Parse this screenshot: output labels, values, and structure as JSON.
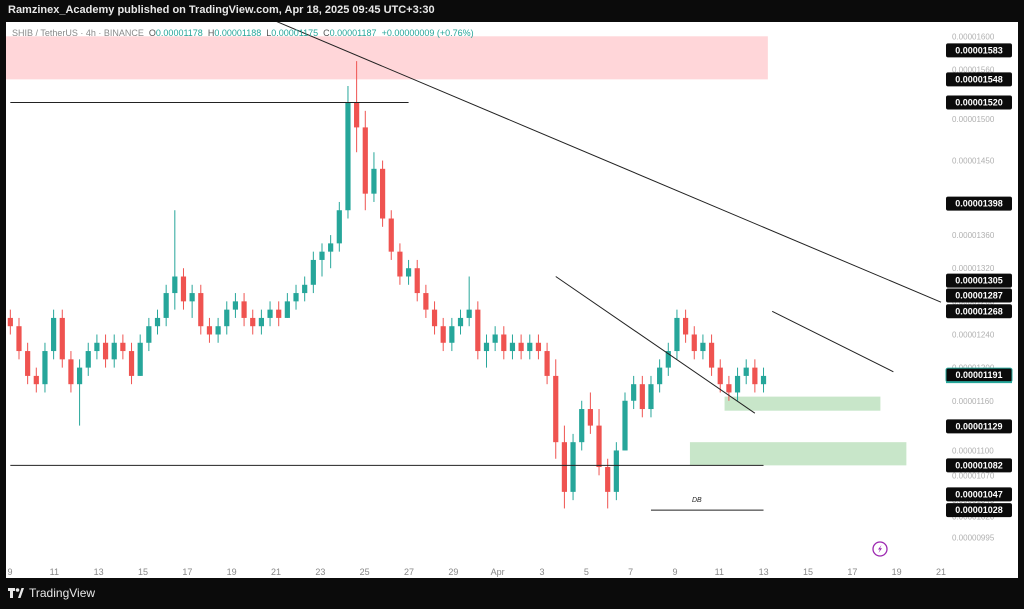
{
  "header": {
    "publisher_text": "Ramzinex_Academy published on TradingView.com, Apr 18, 2025 09:45 UTC+3:30"
  },
  "legend": {
    "symbol": "SHIB / TetherUS · 4h · BINANCE",
    "open_label": "O",
    "open": "0.00001178",
    "high_label": "H",
    "high": "0.00001188",
    "low_label": "L",
    "low": "0.00001175",
    "close_label": "C",
    "close": "0.00001187",
    "change": "+0.00000009 (+0.76%)"
  },
  "footer": {
    "brand": "TradingView"
  },
  "annotations": {
    "double_bottom": "DB"
  },
  "colors": {
    "up": "#26a69a",
    "down": "#ef5350",
    "resistance_zone": "#ffd6d9",
    "support_zone": "#c8e6c9",
    "line": "#222222",
    "price_tag_bg": "#0b0b0b",
    "current_price_tag": "#26a69a"
  },
  "chart_data": {
    "type": "candlestick",
    "title": "",
    "y_scale": "linear",
    "ylim": [
      9.75e-06,
      1.61e-05
    ],
    "y_axis_ticks": [
      "0.00001600",
      "0.00001560",
      "0.00001500",
      "0.00001450",
      "0.00001400",
      "0.00001360",
      "0.00001320",
      "0.00001280",
      "0.00001240",
      "0.00001200",
      "0.00001160",
      "0.00001130",
      "0.00001100",
      "0.00001070",
      "0.00001040",
      "0.00001020",
      "0.00000995"
    ],
    "x_axis_ticks": [
      "9",
      "11",
      "13",
      "15",
      "17",
      "19",
      "21",
      "23",
      "25",
      "27",
      "29",
      "Apr",
      "3",
      "5",
      "7",
      "9",
      "11",
      "13",
      "15",
      "17",
      "19",
      "21"
    ],
    "price_tags": [
      {
        "value": "0.00001583",
        "type": "level"
      },
      {
        "value": "0.00001548",
        "type": "level"
      },
      {
        "value": "0.00001520",
        "type": "level"
      },
      {
        "value": "0.00001398",
        "type": "level"
      },
      {
        "value": "0.00001305",
        "type": "level"
      },
      {
        "value": "0.00001287",
        "type": "level"
      },
      {
        "value": "0.00001268",
        "type": "level"
      },
      {
        "value": "0.00001191",
        "type": "current"
      },
      {
        "value": "0.00001129",
        "type": "level"
      },
      {
        "value": "0.00001082",
        "type": "level"
      },
      {
        "value": "0.00001047",
        "type": "level"
      },
      {
        "value": "0.00001028",
        "type": "level"
      }
    ],
    "zones": [
      {
        "kind": "resistance",
        "x_start": 0,
        "x_end": 88,
        "y_low": 1.548e-05,
        "y_high": 1.6e-05
      },
      {
        "kind": "support",
        "x_start": 83,
        "x_end": 101,
        "y_low": 1.148e-05,
        "y_high": 1.165e-05
      },
      {
        "kind": "support",
        "x_start": 79,
        "x_end": 104,
        "y_low": 1.082e-05,
        "y_high": 1.11e-05
      }
    ],
    "lines": [
      {
        "name": "horizontal-resistance",
        "x1": 0,
        "y1": 1.52e-05,
        "x2": 46,
        "y2": 1.52e-05
      },
      {
        "name": "horizontal-support",
        "x1": 0,
        "y1": 1.082e-05,
        "x2": 87,
        "y2": 1.082e-05
      },
      {
        "name": "major-downtrend",
        "x1": 28,
        "y1": 1.63e-05,
        "x2": 110,
        "y2": 1.279e-05
      },
      {
        "name": "mid-downtrend",
        "x1": 63,
        "y1": 1.31e-05,
        "x2": 86,
        "y2": 1.145e-05
      },
      {
        "name": "recent-downtrend",
        "x1": 88,
        "y1": 1.268e-05,
        "x2": 102,
        "y2": 1.195e-05
      },
      {
        "name": "double-bottom-line",
        "x1": 74,
        "y1": 1.028e-05,
        "x2": 87,
        "y2": 1.028e-05
      }
    ],
    "candles": [
      [
        1.26e-05,
        1.27e-05,
        1.24e-05,
        1.25e-05
      ],
      [
        1.25e-05,
        1.26e-05,
        1.21e-05,
        1.22e-05
      ],
      [
        1.22e-05,
        1.23e-05,
        1.18e-05,
        1.19e-05
      ],
      [
        1.19e-05,
        1.2e-05,
        1.17e-05,
        1.18e-05
      ],
      [
        1.18e-05,
        1.23e-05,
        1.17e-05,
        1.22e-05
      ],
      [
        1.22e-05,
        1.27e-05,
        1.21e-05,
        1.26e-05
      ],
      [
        1.26e-05,
        1.27e-05,
        1.2e-05,
        1.21e-05
      ],
      [
        1.21e-05,
        1.22e-05,
        1.17e-05,
        1.18e-05
      ],
      [
        1.18e-05,
        1.21e-05,
        1.13e-05,
        1.2e-05
      ],
      [
        1.2e-05,
        1.23e-05,
        1.19e-05,
        1.22e-05
      ],
      [
        1.22e-05,
        1.24e-05,
        1.21e-05,
        1.23e-05
      ],
      [
        1.23e-05,
        1.24e-05,
        1.2e-05,
        1.21e-05
      ],
      [
        1.21e-05,
        1.24e-05,
        1.2e-05,
        1.23e-05
      ],
      [
        1.23e-05,
        1.24e-05,
        1.21e-05,
        1.22e-05
      ],
      [
        1.22e-05,
        1.23e-05,
        1.18e-05,
        1.19e-05
      ],
      [
        1.19e-05,
        1.24e-05,
        1.19e-05,
        1.23e-05
      ],
      [
        1.23e-05,
        1.26e-05,
        1.22e-05,
        1.25e-05
      ],
      [
        1.25e-05,
        1.27e-05,
        1.24e-05,
        1.26e-05
      ],
      [
        1.26e-05,
        1.3e-05,
        1.25e-05,
        1.29e-05
      ],
      [
        1.29e-05,
        1.39e-05,
        1.27e-05,
        1.31e-05
      ],
      [
        1.31e-05,
        1.32e-05,
        1.27e-05,
        1.28e-05
      ],
      [
        1.28e-05,
        1.3e-05,
        1.26e-05,
        1.29e-05
      ],
      [
        1.29e-05,
        1.3e-05,
        1.24e-05,
        1.25e-05
      ],
      [
        1.25e-05,
        1.26e-05,
        1.23e-05,
        1.24e-05
      ],
      [
        1.24e-05,
        1.26e-05,
        1.23e-05,
        1.25e-05
      ],
      [
        1.25e-05,
        1.28e-05,
        1.24e-05,
        1.27e-05
      ],
      [
        1.27e-05,
        1.29e-05,
        1.26e-05,
        1.28e-05
      ],
      [
        1.28e-05,
        1.29e-05,
        1.25e-05,
        1.26e-05
      ],
      [
        1.26e-05,
        1.27e-05,
        1.24e-05,
        1.25e-05
      ],
      [
        1.25e-05,
        1.27e-05,
        1.24e-05,
        1.26e-05
      ],
      [
        1.26e-05,
        1.28e-05,
        1.25e-05,
        1.27e-05
      ],
      [
        1.27e-05,
        1.28e-05,
        1.25e-05,
        1.26e-05
      ],
      [
        1.26e-05,
        1.29e-05,
        1.26e-05,
        1.28e-05
      ],
      [
        1.28e-05,
        1.3e-05,
        1.27e-05,
        1.29e-05
      ],
      [
        1.29e-05,
        1.31e-05,
        1.28e-05,
        1.3e-05
      ],
      [
        1.3e-05,
        1.34e-05,
        1.29e-05,
        1.33e-05
      ],
      [
        1.33e-05,
        1.35e-05,
        1.31e-05,
        1.34e-05
      ],
      [
        1.34e-05,
        1.36e-05,
        1.32e-05,
        1.35e-05
      ],
      [
        1.35e-05,
        1.4e-05,
        1.34e-05,
        1.39e-05
      ],
      [
        1.39e-05,
        1.54e-05,
        1.38e-05,
        1.52e-05
      ],
      [
        1.52e-05,
        1.57e-05,
        1.46e-05,
        1.49e-05
      ],
      [
        1.49e-05,
        1.51e-05,
        1.39e-05,
        1.41e-05
      ],
      [
        1.41e-05,
        1.46e-05,
        1.4e-05,
        1.44e-05
      ],
      [
        1.44e-05,
        1.45e-05,
        1.37e-05,
        1.38e-05
      ],
      [
        1.38e-05,
        1.39e-05,
        1.33e-05,
        1.34e-05
      ],
      [
        1.34e-05,
        1.35e-05,
        1.3e-05,
        1.31e-05
      ],
      [
        1.31e-05,
        1.33e-05,
        1.3e-05,
        1.32e-05
      ],
      [
        1.32e-05,
        1.33e-05,
        1.28e-05,
        1.29e-05
      ],
      [
        1.29e-05,
        1.3e-05,
        1.26e-05,
        1.27e-05
      ],
      [
        1.27e-05,
        1.28e-05,
        1.24e-05,
        1.25e-05
      ],
      [
        1.25e-05,
        1.26e-05,
        1.22e-05,
        1.23e-05
      ],
      [
        1.23e-05,
        1.26e-05,
        1.22e-05,
        1.25e-05
      ],
      [
        1.25e-05,
        1.27e-05,
        1.24e-05,
        1.26e-05
      ],
      [
        1.26e-05,
        1.31e-05,
        1.25e-05,
        1.27e-05
      ],
      [
        1.27e-05,
        1.28e-05,
        1.21e-05,
        1.22e-05
      ],
      [
        1.22e-05,
        1.24e-05,
        1.2e-05,
        1.23e-05
      ],
      [
        1.23e-05,
        1.25e-05,
        1.22e-05,
        1.24e-05
      ],
      [
        1.24e-05,
        1.25e-05,
        1.21e-05,
        1.22e-05
      ],
      [
        1.22e-05,
        1.24e-05,
        1.21e-05,
        1.23e-05
      ],
      [
        1.23e-05,
        1.24e-05,
        1.21e-05,
        1.22e-05
      ],
      [
        1.22e-05,
        1.24e-05,
        1.21e-05,
        1.23e-05
      ],
      [
        1.23e-05,
        1.24e-05,
        1.21e-05,
        1.22e-05
      ],
      [
        1.22e-05,
        1.23e-05,
        1.18e-05,
        1.19e-05
      ],
      [
        1.19e-05,
        1.21e-05,
        1.09e-05,
        1.11e-05
      ],
      [
        1.11e-05,
        1.13e-05,
        1.03e-05,
        1.05e-05
      ],
      [
        1.05e-05,
        1.12e-05,
        1.04e-05,
        1.11e-05
      ],
      [
        1.11e-05,
        1.16e-05,
        1.1e-05,
        1.15e-05
      ],
      [
        1.15e-05,
        1.17e-05,
        1.12e-05,
        1.13e-05
      ],
      [
        1.13e-05,
        1.15e-05,
        1.07e-05,
        1.08e-05
      ],
      [
        1.08e-05,
        1.09e-05,
        1.03e-05,
        1.05e-05
      ],
      [
        1.05e-05,
        1.11e-05,
        1.04e-05,
        1.1e-05
      ],
      [
        1.1e-05,
        1.17e-05,
        1.1e-05,
        1.16e-05
      ],
      [
        1.16e-05,
        1.19e-05,
        1.15e-05,
        1.18e-05
      ],
      [
        1.18e-05,
        1.19e-05,
        1.14e-05,
        1.15e-05
      ],
      [
        1.15e-05,
        1.19e-05,
        1.14e-05,
        1.18e-05
      ],
      [
        1.18e-05,
        1.21e-05,
        1.17e-05,
        1.2e-05
      ],
      [
        1.2e-05,
        1.23e-05,
        1.19e-05,
        1.22e-05
      ],
      [
        1.22e-05,
        1.27e-05,
        1.21e-05,
        1.26e-05
      ],
      [
        1.26e-05,
        1.27e-05,
        1.23e-05,
        1.24e-05
      ],
      [
        1.24e-05,
        1.25e-05,
        1.21e-05,
        1.22e-05
      ],
      [
        1.22e-05,
        1.24e-05,
        1.21e-05,
        1.23e-05
      ],
      [
        1.23e-05,
        1.24e-05,
        1.19e-05,
        1.2e-05
      ],
      [
        1.2e-05,
        1.21e-05,
        1.17e-05,
        1.18e-05
      ],
      [
        1.18e-05,
        1.19e-05,
        1.16e-05,
        1.17e-05
      ],
      [
        1.17e-05,
        1.2e-05,
        1.16e-05,
        1.19e-05
      ],
      [
        1.19e-05,
        1.21e-05,
        1.18e-05,
        1.2e-05
      ],
      [
        1.2e-05,
        1.21e-05,
        1.17e-05,
        1.18e-05
      ],
      [
        1.18e-05,
        1.2e-05,
        1.17e-05,
        1.19e-05
      ]
    ]
  }
}
